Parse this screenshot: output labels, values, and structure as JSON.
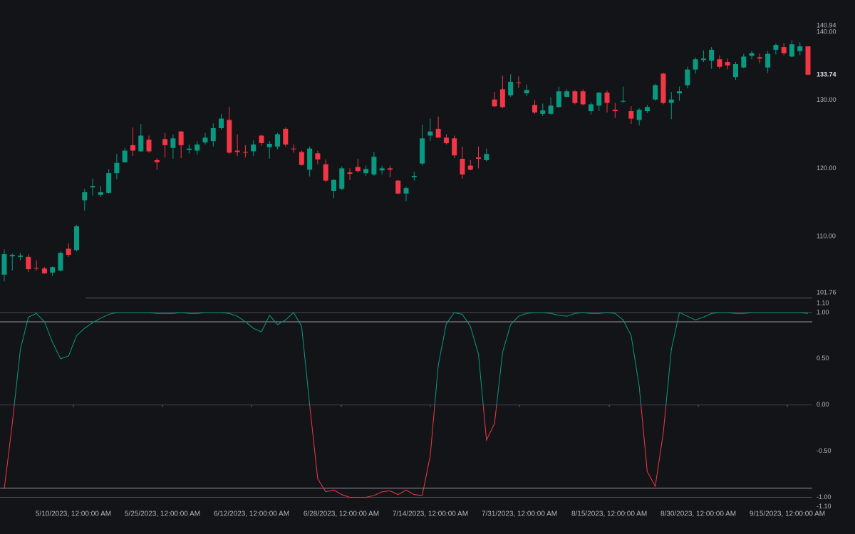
{
  "chart_data": [
    {
      "type": "candlestick",
      "up_color": "#089981",
      "down_color": "#f23645",
      "xlim": [
        -0.53,
        100.53
      ],
      "ylim": [
        101.76,
        140.94
      ],
      "yticks": [
        101.76,
        {
          "value": 110,
          "label": "110.00"
        },
        {
          "value": 120,
          "label": "120.00"
        },
        {
          "value": 130,
          "label": "130.00"
        },
        {
          "value": 140,
          "label": "140.00"
        },
        140.94
      ],
      "open": [
        104.4,
        107.1,
        107.0,
        107.0,
        105.4,
        105.3,
        104.7,
        105.0,
        108.2,
        108.0,
        115.3,
        117.2,
        116.1,
        116.4,
        119.3,
        120.9,
        123.4,
        122.5,
        124.2,
        121.2,
        124.3,
        123.0,
        125.4,
        122.7,
        122.6,
        123.8,
        124.0,
        125.9,
        127.1,
        122.6,
        122.4,
        122.5,
        124.8,
        123.1,
        123.2,
        125.8,
        122.9,
        122.4,
        119.8,
        122.2,
        120.6,
        116.7,
        117.0,
        119.4,
        120.2,
        119.3,
        119.1,
        119.7,
        120.0,
        118.2,
        116.3,
        118.7,
        120.7,
        124.8,
        125.8,
        124.5,
        124.4,
        121.4,
        120.4,
        121.6,
        121.2,
        130.1,
        131.6,
        130.7,
        132.6,
        131.0,
        129.3,
        128.0,
        128.0,
        129.0,
        130.5,
        131.3,
        131.3,
        128.4,
        129.2,
        131.1,
        128.6,
        129.8,
        128.4,
        127.1,
        128.4,
        130.1,
        133.9,
        129.6,
        131.0,
        132.2,
        134.5,
        135.9,
        135.8,
        136.0,
        135.6,
        133.4,
        134.8,
        136.5,
        136.3,
        134.8,
        137.4,
        137.8,
        136.4,
        137.2,
        137.9
      ],
      "high": [
        108.1,
        107.5,
        107.6,
        107.4,
        106.5,
        105.5,
        105.6,
        107.8,
        109.0,
        111.7,
        117.0,
        118.5,
        117.4,
        119.9,
        122.1,
        123.0,
        126.0,
        126.5,
        124.8,
        121.5,
        125.2,
        125.0,
        125.5,
        123.5,
        124.0,
        125.2,
        126.6,
        128.0,
        129.0,
        125.0,
        123.4,
        124.1,
        124.9,
        124.0,
        125.2,
        126.0,
        123.5,
        122.6,
        123.2,
        122.6,
        121.3,
        118.4,
        120.3,
        120.0,
        121.4,
        120.4,
        122.4,
        120.4,
        120.4,
        118.3,
        117.3,
        119.5,
        126.4,
        127.3,
        127.6,
        125.0,
        124.8,
        123.2,
        121.2,
        123.2,
        122.9,
        131.2,
        133.6,
        133.8,
        133.5,
        132.3,
        130.0,
        129.5,
        130.4,
        132.0,
        131.6,
        131.5,
        131.6,
        129.7,
        131.2,
        131.4,
        129.6,
        132.0,
        129.1,
        128.8,
        129.3,
        132.4,
        134.0,
        131.2,
        132.0,
        134.9,
        136.3,
        137.3,
        137.8,
        136.6,
        136.1,
        135.6,
        136.8,
        137.2,
        136.8,
        137.2,
        138.3,
        138.4,
        138.8,
        138.5,
        137.9
      ],
      "low": [
        103.4,
        105.0,
        106.5,
        104.8,
        105.0,
        104.5,
        104.2,
        104.9,
        107.0,
        107.8,
        113.8,
        116.0,
        115.8,
        116.3,
        118.4,
        120.8,
        121.8,
        122.4,
        122.3,
        119.8,
        121.6,
        121.4,
        121.5,
        122.2,
        122.0,
        123.5,
        123.2,
        125.6,
        122.1,
        121.8,
        121.6,
        121.8,
        123.3,
        121.4,
        122.8,
        123.2,
        122.3,
        120.4,
        118.8,
        120.6,
        118.0,
        115.6,
        116.8,
        118.3,
        119.4,
        118.9,
        118.9,
        119.1,
        118.7,
        116.2,
        115.2,
        118.2,
        120.4,
        124.0,
        124.5,
        123.5,
        121.5,
        118.5,
        119.7,
        120.0,
        121.0,
        129.0,
        128.8,
        130.5,
        131.8,
        130.6,
        128.0,
        127.7,
        127.9,
        128.9,
        130.4,
        129.4,
        129.2,
        127.9,
        128.4,
        128.2,
        127.4,
        129.6,
        126.5,
        126.3,
        128.1,
        129.9,
        129.4,
        127.2,
        129.9,
        131.8,
        133.9,
        135.6,
        134.6,
        134.6,
        134.5,
        133.0,
        134.7,
        136.0,
        135.4,
        134.0,
        136.7,
        136.6,
        136.3,
        136.6,
        133.74
      ],
      "close": [
        107.4,
        107.3,
        107.2,
        105.2,
        105.3,
        104.6,
        105.5,
        107.6,
        107.3,
        111.5,
        116.5,
        117.4,
        116.5,
        119.3,
        120.8,
        122.6,
        122.6,
        124.8,
        122.5,
        120.9,
        123.4,
        124.4,
        123.4,
        122.9,
        123.5,
        124.5,
        125.9,
        127.3,
        122.3,
        122.4,
        122.3,
        123.5,
        123.7,
        123.6,
        125.0,
        123.5,
        122.8,
        120.5,
        122.9,
        121.3,
        118.2,
        118.3,
        120.0,
        119.2,
        119.6,
        119.9,
        121.7,
        120.0,
        119.8,
        116.3,
        117.1,
        118.9,
        124.4,
        125.4,
        124.5,
        123.7,
        121.9,
        119.1,
        119.8,
        121.4,
        122.1,
        129.1,
        129.0,
        132.7,
        132.5,
        131.5,
        128.2,
        128.5,
        129.2,
        131.3,
        131.3,
        129.6,
        129.4,
        129.4,
        131.1,
        129.6,
        128.4,
        129.9,
        127.3,
        128.6,
        129.0,
        132.2,
        129.6,
        130.1,
        131.3,
        134.5,
        136.0,
        136.1,
        137.4,
        134.9,
        135.1,
        135.3,
        136.4,
        136.9,
        136.1,
        136.8,
        138.1,
        136.9,
        138.2,
        137.9,
        133.74
      ]
    },
    {
      "type": "line",
      "up_color": "#089981",
      "down_color": "#f23645",
      "xlim": [
        -0.53,
        100.53
      ],
      "ylim": [
        -1.1,
        1.1
      ],
      "yticks": [
        {
          "value": -1.1,
          "label": "-1.10"
        },
        {
          "value": -1,
          "label": "-1.00"
        },
        {
          "value": -0.5,
          "label": "-0.50"
        },
        {
          "value": 0,
          "label": "0.00"
        },
        {
          "value": 0.5,
          "label": "0.50"
        },
        {
          "value": 1,
          "label": "1.00"
        },
        {
          "value": 1.1,
          "label": "1.10"
        }
      ],
      "levels": [
        {
          "value": 1,
          "color": "#4a4c52"
        },
        {
          "value": 0.9,
          "color": "#9598a1"
        },
        {
          "value": 0,
          "color": "#3a3c42"
        },
        {
          "value": -0.9,
          "color": "#9598a1"
        },
        {
          "value": -1,
          "color": "#4a4c52"
        }
      ],
      "xticks": [
        {
          "value": 8.6,
          "label": "5/10/2023, 12:00:00 AM"
        },
        {
          "value": 19.68,
          "label": "5/25/2023, 12:00:00 AM"
        },
        {
          "value": 30.76,
          "label": "6/12/2023, 12:00:00 AM"
        },
        {
          "value": 41.93,
          "label": "6/28/2023, 12:00:00 AM"
        },
        {
          "value": 53.01,
          "label": "7/14/2023, 12:00:00 AM"
        },
        {
          "value": 64.1,
          "label": "7/31/2023, 12:00:00 AM"
        },
        {
          "value": 75.27,
          "label": "8/15/2023, 12:00:00 AM"
        },
        {
          "value": 86.35,
          "label": "8/30/2023, 12:00:00 AM"
        },
        {
          "value": 97.43,
          "label": "9/15/2023, 12:00:00 AM"
        }
      ],
      "values": [
        -0.91,
        -0.2,
        0.6,
        0.95,
        0.99,
        0.9,
        0.68,
        0.5,
        0.53,
        0.75,
        0.83,
        0.89,
        0.94,
        0.98,
        1.0,
        1.0,
        1.0,
        1.0,
        1.0,
        0.99,
        0.99,
        0.99,
        1.0,
        0.99,
        0.99,
        1.0,
        1.0,
        1.0,
        0.99,
        0.96,
        0.9,
        0.83,
        0.79,
        0.97,
        0.87,
        0.92,
        1.0,
        0.85,
        0.0,
        -0.8,
        -0.94,
        -0.92,
        -0.97,
        -1.0,
        -1.0,
        -1.0,
        -0.98,
        -0.94,
        -0.93,
        -0.97,
        -0.92,
        -0.97,
        -0.98,
        -0.55,
        0.43,
        0.88,
        1.0,
        0.98,
        0.85,
        0.55,
        -0.38,
        -0.2,
        0.57,
        0.87,
        0.96,
        0.99,
        1.0,
        1.0,
        0.99,
        0.97,
        0.96,
        0.99,
        1.0,
        0.99,
        0.99,
        1.0,
        0.99,
        0.92,
        0.75,
        0.2,
        -0.72,
        -0.88,
        -0.3,
        0.6,
        1.0,
        0.96,
        0.92,
        0.95,
        0.99,
        1.0,
        1.0,
        0.99,
        0.99,
        1.0,
        1.0,
        1.0,
        1.0,
        1.0,
        1.0,
        1.0,
        0.99
      ]
    }
  ]
}
